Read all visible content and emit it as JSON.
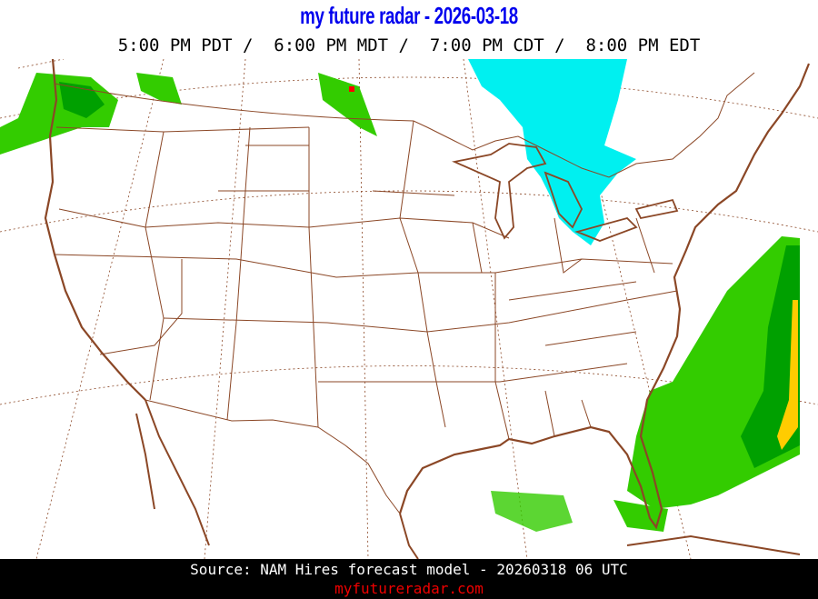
{
  "header": {
    "title": "my future radar - 2026-03-18",
    "times": "5:00 PM PDT /  6:00 PM MDT /  7:00 PM CDT /  8:00 PM EDT"
  },
  "footer": {
    "source": "Source: NAM Hires forecast model - 20260318 06 UTC",
    "site": "myfutureradar.com"
  },
  "colors": {
    "title": "#0000ee",
    "boundaries": "#8b4726",
    "snow": "#00f0f0",
    "rain_light": "#33cc00",
    "rain_moderate": "#00a000",
    "rain_heavy": "#ffcc00",
    "site": "#ee0000"
  }
}
